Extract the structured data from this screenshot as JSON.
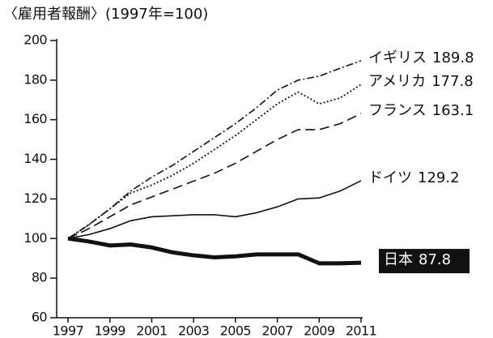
{
  "chart_data": {
    "type": "line",
    "title": "〈雇用者報酬〉(1997年=100)",
    "x": [
      1997,
      1998,
      1999,
      2000,
      2001,
      2002,
      2003,
      2004,
      2005,
      2006,
      2007,
      2008,
      2009,
      2010,
      2011
    ],
    "xlim": [
      1997,
      2011
    ],
    "xticks": [
      1997,
      1999,
      2001,
      2003,
      2005,
      2007,
      2009,
      2011
    ],
    "ylim": [
      60,
      200
    ],
    "yticks": [
      60,
      80,
      100,
      120,
      140,
      160,
      180,
      200
    ],
    "series": [
      {
        "name": "イギリス",
        "color": "#111111",
        "linestyle": "dashdot",
        "values": [
          100,
          107,
          115,
          124,
          131,
          137,
          144,
          151,
          158,
          166,
          175,
          180,
          182,
          186,
          189.8
        ]
      },
      {
        "name": "アメリカ",
        "color": "#111111",
        "linestyle": "dotted",
        "values": [
          100,
          107,
          115,
          123,
          127,
          132,
          138,
          145,
          152,
          160,
          168,
          174,
          168,
          171,
          177.8
        ]
      },
      {
        "name": "フランス",
        "color": "#111111",
        "linestyle": "dashed",
        "values": [
          100,
          105,
          111,
          117,
          121,
          125,
          129,
          133,
          138,
          144,
          150,
          155,
          155,
          158,
          163.1
        ]
      },
      {
        "name": "ドイツ",
        "color": "#111111",
        "linestyle": "solid",
        "values": [
          100,
          102,
          105,
          109,
          111,
          111.5,
          112,
          112,
          111,
          113,
          116,
          120,
          120.5,
          124,
          129.2
        ]
      },
      {
        "name": "日本",
        "color": "#111111",
        "linestyle": "bold",
        "highlight": true,
        "values": [
          100,
          98.5,
          96.5,
          97,
          95.5,
          93,
          91.5,
          90.5,
          91,
          92,
          92,
          92,
          87.5,
          87.5,
          87.8
        ]
      }
    ]
  }
}
